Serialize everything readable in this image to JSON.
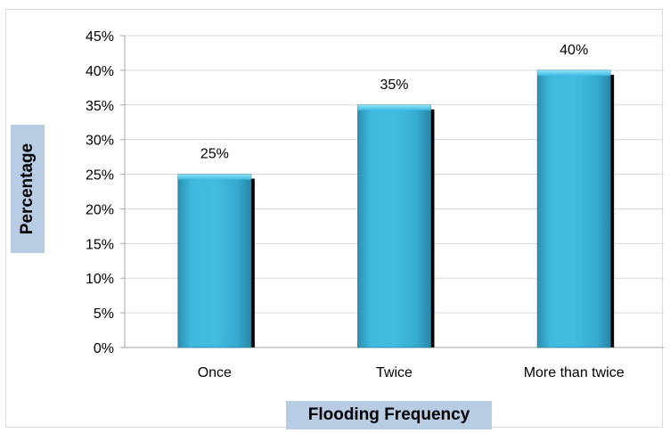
{
  "chart_data": {
    "type": "bar",
    "title": "",
    "xlabel": "Flooding Frequency",
    "ylabel": "Percentage",
    "categories": [
      "Once",
      "Twice",
      "More than twice"
    ],
    "values": [
      25,
      35,
      40
    ],
    "value_labels": [
      "25%",
      "35%",
      "40%"
    ],
    "y_ticks": [
      "0%",
      "5%",
      "10%",
      "15%",
      "20%",
      "25%",
      "30%",
      "35%",
      "40%",
      "45%"
    ],
    "ylim": [
      0,
      45
    ],
    "y_tick_step": 5,
    "grid": true,
    "legend": "none",
    "colors": {
      "bar": "#3bb4d9",
      "bar_dark": "#2a8fb0",
      "bar_shadow": "#000000",
      "gridline": "#d9d9d9",
      "axis_title_bg": "#b8cce4"
    }
  }
}
